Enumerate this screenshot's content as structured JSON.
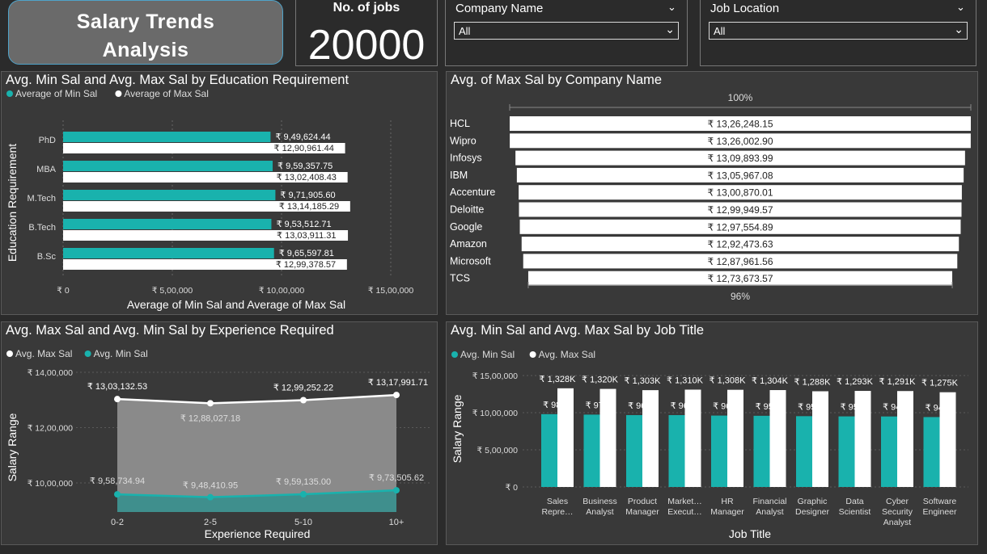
{
  "header": {
    "title_line1": "Salary Trends",
    "title_line2": "Analysis",
    "kpi_label": "No. of jobs",
    "kpi_value": "20000"
  },
  "filters": [
    {
      "label": "Company Name",
      "value": "All"
    },
    {
      "label": "Job Location",
      "value": "All"
    }
  ],
  "colors": {
    "teal": "#19b2ad",
    "white": "#ffffff",
    "panel": "#393939",
    "background": "#2b2b2b"
  },
  "icons": {
    "dropdown": "chevron-down-icon"
  },
  "chart_data": [
    {
      "type": "bar",
      "orientation": "horizontal",
      "title": "Avg. Min Sal and Avg. Max Sal by Education Requirement",
      "legend": [
        "Average of Min Sal",
        "Average of Max Sal"
      ],
      "legend_position": "top-left",
      "xlabel": "Average of Min Sal and Average of Max Sal",
      "ylabel": "Education Requirement",
      "categories": [
        "PhD",
        "MBA",
        "M.Tech",
        "B.Tech",
        "B.Sc"
      ],
      "series": [
        {
          "name": "Average of Min Sal",
          "values": [
            949624.44,
            959357.75,
            971905.6,
            953512.71,
            965597.81
          ],
          "labels": [
            "₹ 9,49,624.44",
            "₹ 9,59,357.75",
            "₹ 9,71,905.60",
            "₹ 9,53,512.71",
            "₹ 9,65,597.81"
          ]
        },
        {
          "name": "Average of Max Sal",
          "values": [
            1290961.44,
            1302408.43,
            1314185.29,
            1303911.31,
            1299378.57
          ],
          "labels": [
            "₹ 12,90,961.44",
            "₹ 13,02,408.43",
            "₹ 13,14,185.29",
            "₹ 13,03,911.31",
            "₹ 12,99,378.57"
          ]
        }
      ],
      "xlim": [
        0,
        1500000
      ],
      "x_ticks": [
        0,
        500000,
        1000000,
        1500000
      ],
      "x_tick_labels": [
        "₹ 0",
        "₹ 5,00,000",
        "₹ 10,00,000",
        "₹ 15,00,000"
      ]
    },
    {
      "type": "bar",
      "orientation": "horizontal-funnel",
      "title": "Avg. of Max Sal by Company Name",
      "top_label": "100%",
      "bottom_label": "96%",
      "categories": [
        "HCL",
        "Wipro",
        "Infosys",
        "IBM",
        "Accenture",
        "Deloitte",
        "Google",
        "Amazon",
        "Microsoft",
        "TCS"
      ],
      "values": [
        1326248.15,
        1326002.9,
        1309893.99,
        1305967.08,
        1300870.01,
        1299949.57,
        1297554.89,
        1292473.63,
        1287961.56,
        1273673.57
      ],
      "labels": [
        "₹ 13,26,248.15",
        "₹ 13,26,002.90",
        "₹ 13,09,893.99",
        "₹ 13,05,967.08",
        "₹ 13,00,870.01",
        "₹ 12,99,949.57",
        "₹ 12,97,554.89",
        "₹ 12,92,473.63",
        "₹ 12,87,961.56",
        "₹ 12,73,673.57"
      ]
    },
    {
      "type": "area",
      "title": "Avg. Max Sal and Avg. Min Sal by Experience Required",
      "legend": [
        "Avg. Max Sal",
        "Avg. Min Sal"
      ],
      "legend_position": "top-left",
      "xlabel": "Experience Required",
      "ylabel": "Salary Range",
      "categories": [
        "0-2",
        "2-5",
        "5-10",
        "10+"
      ],
      "series": [
        {
          "name": "Avg. Max Sal",
          "values": [
            1303132.53,
            1288027.18,
            1299252.22,
            1317991.71
          ],
          "labels": [
            "₹ 13,03,132.53",
            "₹ 12,88,027.18",
            "₹ 12,99,252.22",
            "₹ 13,17,991.71"
          ]
        },
        {
          "name": "Avg. Min Sal",
          "values": [
            958734.94,
            948410.95,
            959135.0,
            973505.62
          ],
          "labels": [
            "₹ 9,58,734.94",
            "₹ 9,48,410.95",
            "₹ 9,59,135.00",
            "₹ 9,73,505.62"
          ]
        }
      ],
      "y_ticks": [
        1000000,
        1200000,
        1400000
      ],
      "y_tick_labels": [
        "₹ 10,00,000",
        "₹ 12,00,000",
        "₹ 14,00,000"
      ]
    },
    {
      "type": "bar",
      "title": "Avg. Min Sal and Avg. Max Sal by Job Title",
      "legend": [
        "Avg. Min Sal",
        "Avg. Max Sal"
      ],
      "legend_position": "top-left",
      "xlabel": "Job Title",
      "ylabel": "Salary Range",
      "categories": [
        [
          "Sales",
          "Repre…"
        ],
        [
          "Business",
          "Analyst"
        ],
        [
          "Product",
          "Manager"
        ],
        [
          "Market…",
          "Execut…"
        ],
        [
          "HR",
          "Manager"
        ],
        [
          "Financial",
          "Analyst"
        ],
        [
          "Graphic",
          "Designer"
        ],
        [
          "Data",
          "Scientist"
        ],
        [
          "Cyber",
          "Security",
          "Analyst"
        ],
        [
          "Software",
          "Engineer"
        ]
      ],
      "series": [
        {
          "name": "Avg. Min Sal",
          "values": [
            980000,
            974000,
            967000,
            967000,
            961000,
            958000,
            953000,
            950000,
            949000,
            941000
          ],
          "labels": [
            "₹ 980K",
            "₹ 974K",
            "₹ 967K",
            "₹ 967K",
            "₹ 961K",
            "₹ 958K",
            "₹ 953K",
            "₹ 950K",
            "₹ 949K",
            "₹ 941K"
          ]
        },
        {
          "name": "Avg. Max Sal",
          "values": [
            1328000,
            1320000,
            1303000,
            1310000,
            1308000,
            1304000,
            1288000,
            1293000,
            1291000,
            1275000
          ],
          "labels": [
            "₹ 1,328K",
            "₹ 1,320K",
            "₹ 1,303K",
            "₹ 1,310K",
            "₹ 1,308K",
            "₹ 1,304K",
            "₹ 1,288K",
            "₹ 1,293K",
            "₹ 1,291K",
            "₹ 1,275K"
          ]
        }
      ],
      "ylim": [
        0,
        1500000
      ],
      "y_ticks": [
        0,
        500000,
        1000000,
        1500000
      ],
      "y_tick_labels": [
        "₹ 0",
        "₹ 5,00,000",
        "₹ 10,00,000",
        "₹ 15,00,000"
      ]
    }
  ]
}
